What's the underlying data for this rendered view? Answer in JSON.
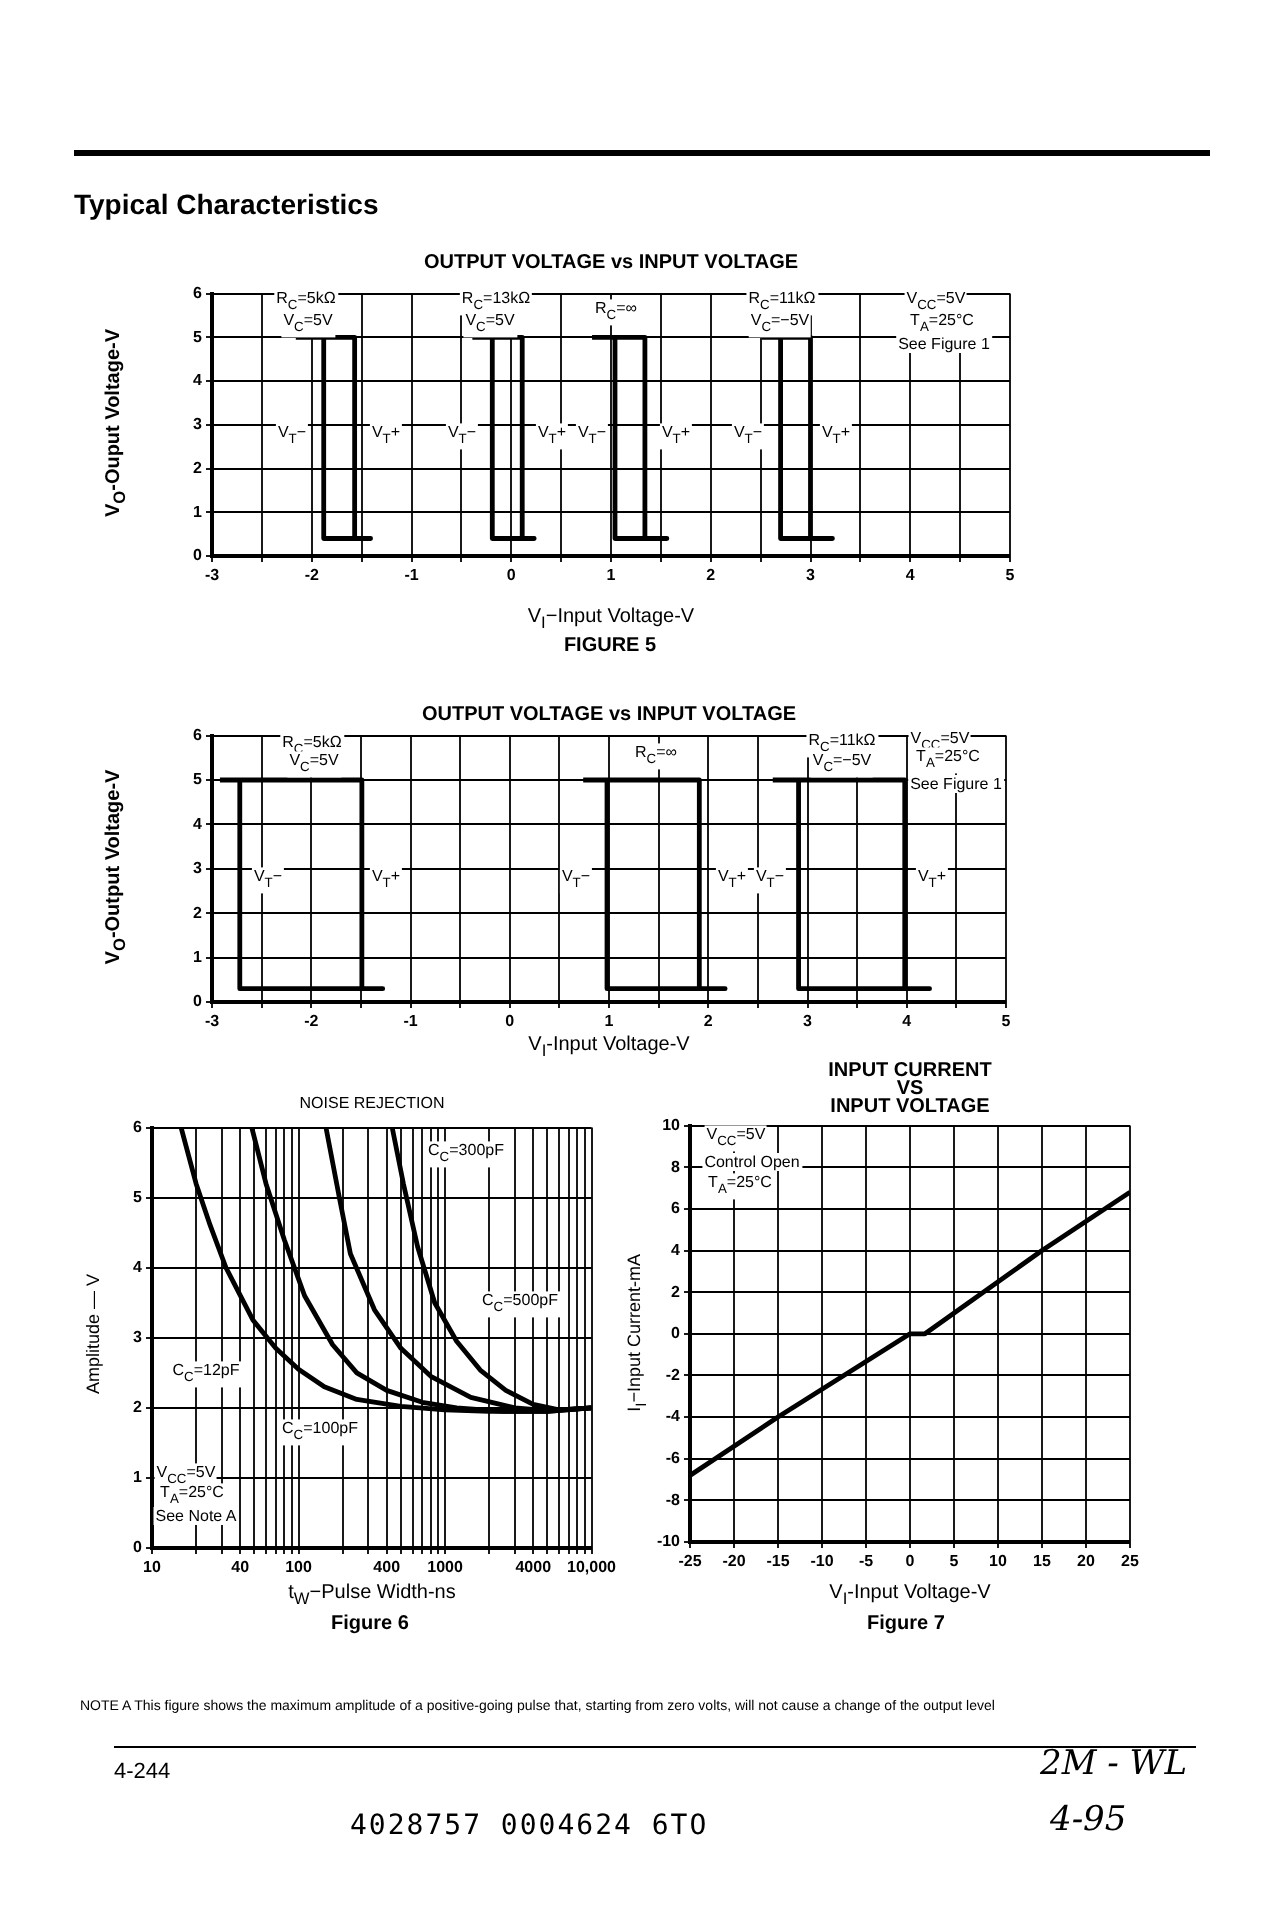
{
  "chart_data": [
    {
      "type": "line",
      "title": "Typical Characteristics",
      "subtitle": "OUTPUT VOLTAGE vs INPUT VOLTAGE",
      "xlabel": "V$_{I}$−Input Voltage-V",
      "ylabel": "V$_{O}$-Ouput Voltage-V",
      "xlim": [
        -3,
        5
      ],
      "ylim": [
        0,
        6
      ],
      "xticks": [
        -3,
        {
          "value": -2.5,
          "label": null
        },
        -2,
        {
          "value": -1.5,
          "label": null
        },
        -1,
        {
          "value": -0.5,
          "label": null
        },
        0,
        {
          "value": 0.5,
          "label": null
        },
        1,
        {
          "value": 1.5,
          "label": null
        },
        2,
        {
          "value": 2.5,
          "label": null
        },
        3,
        {
          "value": 3.5,
          "label": null
        },
        4,
        {
          "value": 4.5,
          "label": null
        },
        5
      ],
      "yticks": [
        0,
        1,
        2,
        3,
        4,
        5,
        6
      ],
      "grid": true,
      "series": [
        {
          "color": "#000000",
          "x": [
            -2.16,
            -1.57,
            -1.57,
            -1.41,
            -1.88,
            -1.88
          ],
          "values": [
            5,
            5,
            0.4,
            0.4,
            0.4,
            5
          ]
        },
        {
          "color": "#000000",
          "x": [
            -0.39,
            0.11,
            0.11,
            0.23,
            -0.19,
            -0.19
          ],
          "values": [
            5,
            5,
            0.4,
            0.4,
            0.4,
            5
          ]
        },
        {
          "color": "#000000",
          "x": [
            0.81,
            1.34,
            1.34,
            1.56,
            1.04,
            1.04
          ],
          "values": [
            5,
            5,
            0.4,
            0.4,
            0.4,
            5
          ]
        },
        {
          "color": "#000000",
          "x": [
            2.51,
            3.0,
            3.0,
            3.22,
            2.7,
            2.7
          ],
          "values": [
            5,
            5,
            0.4,
            0.4,
            0.4,
            5
          ]
        }
      ],
      "annotations": [
        "FIGURE 5",
        "R$_{C}$=5kΩ",
        "V$_{C}$=5V",
        "R$_{C}$=13kΩ",
        "V$_{C}$=5V",
        "R$_{C}$=∞",
        "R$_{C}$=11kΩ",
        "V$_{C}$=−5V",
        "V$_{CC}$=5V",
        "T$_{A}$=25°C",
        "See Figure 1",
        "V$_{T}$−",
        "V$_{T}$+",
        "V$_{T}$−",
        "V$_{T}$+",
        "V$_{T}$−",
        "V$_{T}$+",
        "V$_{T}$−",
        "V$_{T}$+"
      ]
    },
    {
      "type": "line",
      "subtitle": "OUTPUT VOLTAGE vs INPUT VOLTAGE",
      "xlabel": "V$_{I}$-Input Voltage-V",
      "ylabel": "V$_{O}$-Output Voltage-V",
      "xlim": [
        -3,
        5
      ],
      "ylim": [
        0,
        6
      ],
      "xticks": [
        -3,
        {
          "value": -2.5,
          "label": null
        },
        -2,
        {
          "value": -1.5,
          "label": null
        },
        -1,
        {
          "value": -0.5,
          "label": null
        },
        0,
        {
          "value": 0.5,
          "label": null
        },
        1,
        {
          "value": 1.5,
          "label": null
        },
        2,
        {
          "value": 2.5,
          "label": null
        },
        3,
        {
          "value": 3.5,
          "label": null
        },
        4,
        {
          "value": 4.5,
          "label": null
        },
        5
      ],
      "yticks": [
        0,
        1,
        2,
        3,
        4,
        5,
        6
      ],
      "grid": true,
      "series": [
        {
          "color": "#000000",
          "x": [
            -2.92,
            -1.49,
            -1.49,
            -1.28,
            -2.72,
            -2.72
          ],
          "values": [
            5,
            5,
            0.3,
            0.3,
            0.3,
            5
          ]
        },
        {
          "color": "#000000",
          "x": [
            0.74,
            1.91,
            1.91,
            2.17,
            0.98,
            0.98
          ],
          "values": [
            5,
            5,
            0.3,
            0.3,
            0.3,
            5
          ]
        },
        {
          "color": "#000000",
          "x": [
            2.65,
            3.98,
            3.98,
            4.23,
            2.91,
            2.91
          ],
          "values": [
            5,
            5,
            0.3,
            0.3,
            0.3,
            5
          ]
        }
      ],
      "annotations": [
        "R$_{C}$=5kΩ",
        "V$_{C}$=5V",
        "R$_{C}$=∞",
        "R$_{C}$=11kΩ",
        "V$_{C}$=−5V",
        "V$_{CC}$=5V",
        "T$_{A}$=25°C",
        "See Figure 1",
        "V$_{T}$−",
        "V$_{T}$+",
        "V$_{T}$−",
        "V$_{T}$+",
        "V$_{T}$−",
        "V$_{T}$+"
      ]
    },
    {
      "type": "line",
      "subtitle": "NOISE REJECTION",
      "xlabel": "t$_{W}$−Pulse Width-ns",
      "ylabel": "Amplitude — V",
      "log": "x",
      "xlim": [
        10,
        10000
      ],
      "ylim": [
        0,
        6
      ],
      "xticks": [
        10,
        {
          "value": 20,
          "label": null
        },
        {
          "value": 30,
          "label": null
        },
        40,
        {
          "value": 50,
          "label": null
        },
        {
          "value": 60,
          "label": null
        },
        {
          "value": 70,
          "label": null
        },
        {
          "value": 80,
          "label": null
        },
        {
          "value": 90,
          "label": null
        },
        100,
        {
          "value": 200,
          "label": null
        },
        {
          "value": 300,
          "label": null
        },
        400,
        {
          "value": 500,
          "label": null
        },
        {
          "value": 600,
          "label": null
        },
        {
          "value": 700,
          "label": null
        },
        {
          "value": 800,
          "label": null
        },
        {
          "value": 900,
          "label": null
        },
        1000,
        {
          "value": 2000,
          "label": null
        },
        {
          "value": 3000,
          "label": null
        },
        4000,
        {
          "value": 5000,
          "label": null
        },
        {
          "value": 6000,
          "label": null
        },
        {
          "value": 7000,
          "label": null
        },
        {
          "value": 8000,
          "label": null
        },
        {
          "value": 9000,
          "label": null
        },
        {
          "value": 10000,
          "label": "10,000"
        }
      ],
      "yticks": [
        0,
        1,
        2,
        3,
        4,
        5,
        6
      ],
      "grid": true,
      "series": [
        {
          "color": "#000000",
          "x": [
            15.8,
            20,
            25,
            32,
            49,
            70,
            100,
            150,
            250,
            500,
            1000,
            2000,
            5000,
            10000
          ],
          "values": [
            6,
            5.2,
            4.6,
            4.0,
            3.25,
            2.85,
            2.55,
            2.3,
            2.12,
            2.02,
            1.97,
            1.95,
            1.95,
            2.0
          ]
        },
        {
          "color": "#000000",
          "x": [
            48,
            60,
            80,
            110,
            171,
            250,
            400,
            700,
            1200,
            2500,
            5000,
            10000
          ],
          "values": [
            6,
            5.2,
            4.4,
            3.6,
            2.9,
            2.5,
            2.25,
            2.08,
            2.0,
            1.95,
            1.95,
            2.0
          ]
        },
        {
          "color": "#000000",
          "x": [
            154,
            190,
            226,
            330,
            500,
            800,
            1500,
            3000,
            5000,
            10000
          ],
          "values": [
            6,
            5,
            4.2,
            3.4,
            2.85,
            2.45,
            2.15,
            2.0,
            1.96,
            2.0
          ]
        },
        {
          "color": "#000000",
          "x": [
            436,
            520,
            650,
            850,
            1200,
            1740,
            2600,
            4000,
            6000,
            10000
          ],
          "values": [
            6,
            5.2,
            4.3,
            3.5,
            2.95,
            2.54,
            2.25,
            2.05,
            1.97,
            2.0
          ]
        }
      ],
      "annotations": [
        "Figure 6",
        "NOTE A  This figure shows the maximum amplitude of a positive-going pulse that, starting from zero volts, will not cause a change of the output level",
        "C$_{C}$=300pF",
        "C$_{C}$=500pF",
        "C$_{C}$=12pF",
        "C$_{C}$=100pF",
        "V$_{CC}$=5V",
        "T$_{A}$=25°C",
        "See Note A"
      ]
    },
    {
      "type": "line",
      "subtitle": "INPUT CURRENT\nVS\nINPUT VOLTAGE",
      "xlabel": "V$_{I}$-Input Voltage-V",
      "ylabel": "I$_{I}$−Input Current-mA",
      "xlim": [
        -25,
        25
      ],
      "ylim": [
        -10,
        10
      ],
      "xticks": [
        -25,
        -20,
        -15,
        -10,
        -5,
        0,
        5,
        10,
        15,
        20,
        25
      ],
      "yticks": [
        -10,
        -8,
        -6,
        -4,
        -2,
        0,
        2,
        4,
        6,
        8,
        10
      ],
      "grid": true,
      "series": [
        {
          "color": "#000000",
          "x": [
            -25,
            -15,
            0,
            1.7,
            15,
            25
          ],
          "values": [
            -6.8,
            -4,
            0,
            0,
            4,
            6.8
          ]
        }
      ],
      "annotations": [
        "Figure 7",
        "4-244",
        "4028757 0004624 6TO",
        "2M - WL",
        "4-95",
        "V$_{CC}$=5V",
        "Control Open",
        "T$_{A}$=25°C"
      ]
    }
  ]
}
